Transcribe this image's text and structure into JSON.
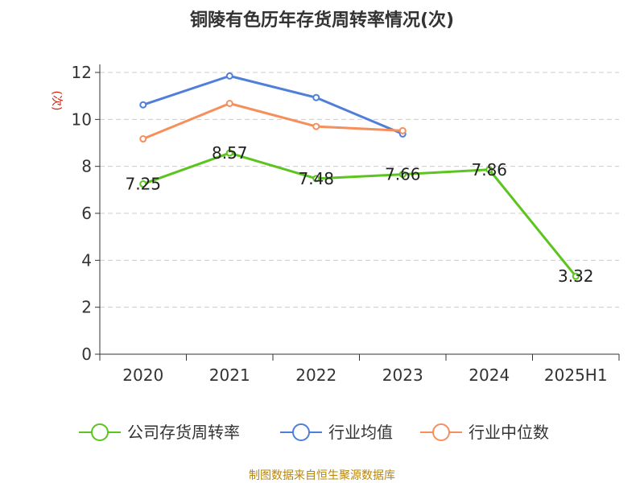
{
  "chart_data": {
    "type": "line",
    "title": "铜陵有色历年存货周转率情况(次)",
    "ylabel": "(次)",
    "xlabel": "",
    "categories": [
      "2020",
      "2021",
      "2022",
      "2023",
      "2024",
      "2025H1"
    ],
    "ylim": [
      0,
      12
    ],
    "yticks": [
      0,
      2,
      4,
      6,
      8,
      10,
      12
    ],
    "grid": true,
    "legend_position": "bottom",
    "series": [
      {
        "name": "公司存货周转率",
        "color": "#5cc41f",
        "values": [
          7.25,
          8.57,
          7.48,
          7.66,
          7.86,
          3.32
        ],
        "labels": [
          "7.25",
          "8.57",
          "7.48",
          "7.66",
          "7.86",
          "3.32"
        ]
      },
      {
        "name": "行业均值",
        "color": "#4f7fd9",
        "values": [
          10.62,
          11.85,
          10.93,
          9.38,
          null,
          null
        ]
      },
      {
        "name": "行业中位数",
        "color": "#f78f5c",
        "values": [
          9.17,
          10.68,
          9.7,
          9.52,
          null,
          null
        ]
      }
    ],
    "source": "制图数据来自恒生聚源数据库"
  }
}
